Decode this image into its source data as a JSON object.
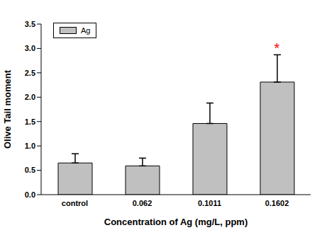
{
  "chart_data": {
    "type": "bar",
    "x_label": "Concentration of Ag (mg/L, ppm)",
    "y_label": "Olive Tail moment",
    "categories": [
      "control",
      "0.062",
      "0.1011",
      "0.1602"
    ],
    "series": [
      {
        "name": "Ag",
        "color": "#c0c0c0",
        "values": [
          0.65,
          0.59,
          1.46,
          2.31
        ],
        "errors": [
          0.19,
          0.16,
          0.42,
          0.56
        ]
      }
    ],
    "ylim": [
      0,
      3.5
    ],
    "yticks": [
      {
        "value": 0,
        "label": "0.0"
      },
      0.5,
      {
        "value": 1,
        "label": "1.0"
      },
      1.5,
      {
        "value": 2,
        "label": "2.0"
      },
      2.5,
      {
        "value": 3,
        "label": "3.0"
      },
      3.5
    ],
    "legend": "upper-left",
    "annotations": [
      {
        "category": "0.1602",
        "text": "*",
        "color": "#ff0000"
      }
    ]
  }
}
